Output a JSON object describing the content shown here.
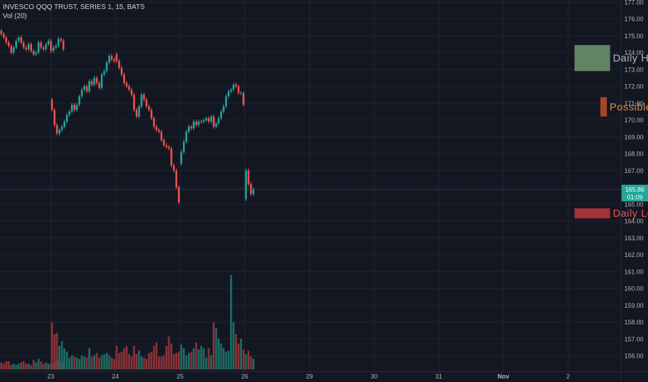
{
  "header": {
    "symbol": "INVESCO QQQ TRUST, SERIES 1, 15, BATS",
    "indicator": "Vol (20)"
  },
  "price_badge": {
    "price": "165.86",
    "countdown": "01:09"
  },
  "colors": {
    "background": "#131722",
    "grid": "#1f2431",
    "up": "#26a69a",
    "down": "#ef5350",
    "vol_up": "#1e6b63",
    "vol_down": "#8a3236",
    "axis_text": "#b2b5be",
    "price_line": "#26a69a"
  },
  "annotations": [
    {
      "label": "Daily High Range",
      "color": "#b2b5be",
      "fill": "#6b8f6b",
      "x_start": 9.1,
      "x_end": 9.65,
      "y_low": 172.9,
      "y_high": 174.45
    },
    {
      "label": "Possible Closing Range",
      "color": "#e8843a",
      "fill": "#b84a2c",
      "x_start": 9.5,
      "x_end": 9.6,
      "y_low": 170.2,
      "y_high": 171.35
    },
    {
      "label": "Daily Low Range",
      "color": "#ef5350",
      "fill": "#b5343a",
      "x_start": 9.1,
      "x_end": 9.65,
      "y_low": 164.15,
      "y_high": 164.75
    }
  ],
  "chart_data": {
    "type": "candlestick",
    "title": "INVESCO QQQ TRUST, SERIES 1, 15, BATS",
    "y_ticks": [
      "177.00",
      "176.00",
      "175.00",
      "174.00",
      "173.00",
      "172.00",
      "171.00",
      "170.00",
      "169.00",
      "168.00",
      "167.00",
      "166.00",
      "165.00",
      "164.00",
      "163.00",
      "162.00",
      "161.00",
      "160.00",
      "159.00",
      "158.00",
      "157.00",
      "156.00"
    ],
    "x_ticks": [
      "23",
      "24",
      "25",
      "26",
      "29",
      "30",
      "31",
      "Nov",
      "2"
    ],
    "ylim": [
      155.2,
      177.3
    ],
    "grid": true,
    "sessions": [
      {
        "day": "22",
        "closes": [
          175.1,
          174.9,
          174.6,
          174.4,
          174.0,
          174.3,
          174.7,
          174.9,
          174.6,
          174.3,
          174.2,
          174.5,
          174.1,
          173.9,
          174.0,
          174.6,
          174.3,
          174.2,
          174.5,
          174.7,
          174.1,
          174.3,
          174.4,
          174.8,
          174.7,
          174.2
        ]
      },
      {
        "day": "23",
        "open": 171.2,
        "closes": [
          170.6,
          169.7,
          169.2,
          169.4,
          169.6,
          169.9,
          170.3,
          170.5,
          170.9,
          170.6,
          170.9,
          171.4,
          171.8,
          172.0,
          171.7,
          172.3,
          172.1,
          172.5,
          172.2,
          171.9,
          172.7,
          172.9,
          173.4,
          173.8,
          173.6,
          173.5
        ]
      },
      {
        "day": "24",
        "open": 173.9,
        "closes": [
          173.5,
          173.1,
          172.7,
          172.2,
          172.0,
          171.8,
          171.5,
          170.6,
          170.2,
          170.8,
          171.5,
          171.2,
          170.8,
          170.6,
          170.1,
          169.6,
          169.4,
          169.3,
          168.8,
          168.5,
          168.4,
          168.3,
          167.3,
          167.0,
          166.0,
          165.1
        ]
      },
      {
        "day": "25",
        "open": 167.4,
        "closes": [
          168.1,
          168.7,
          169.3,
          169.6,
          169.5,
          169.9,
          169.7,
          169.9,
          169.9,
          170.0,
          170.1,
          169.9,
          170.2,
          169.6,
          169.8,
          170.1,
          170.5,
          170.8,
          171.4,
          171.7,
          171.8,
          172.1,
          172.0,
          171.6,
          171.6,
          170.9
        ]
      },
      {
        "day": "26",
        "open": 165.3,
        "closes": [
          167.0,
          166.2,
          165.6,
          165.86
        ]
      }
    ],
    "volume": {
      "ylim": [
        0,
        1.0
      ],
      "values": [
        0.06,
        0.05,
        0.07,
        0.07,
        0.04,
        0.05,
        0.04,
        0.05,
        0.06,
        0.07,
        0.05,
        0.05,
        0.04,
        0.08,
        0.06,
        0.09,
        0.07,
        0.05,
        0.06,
        0.05,
        0.05,
        0.05,
        0.07,
        0.09,
        0.06,
        0.07,
        0.4,
        0.3,
        0.31,
        0.2,
        0.24,
        0.18,
        0.15,
        0.1,
        0.12,
        0.11,
        0.1,
        0.09,
        0.12,
        0.11,
        0.1,
        0.18,
        0.11,
        0.12,
        0.14,
        0.1,
        0.12,
        0.13,
        0.14,
        0.12,
        0.1,
        0.09,
        0.2,
        0.14,
        0.15,
        0.18,
        0.2,
        0.13,
        0.11,
        0.2,
        0.13,
        0.16,
        0.11,
        0.1,
        0.09,
        0.14,
        0.15,
        0.2,
        0.23,
        0.11,
        0.11,
        0.12,
        0.2,
        0.28,
        0.22,
        0.13,
        0.14,
        0.15,
        0.21,
        0.18,
        0.12,
        0.14,
        0.15,
        0.18,
        0.23,
        0.17,
        0.2,
        0.18,
        0.1,
        0.18,
        0.12,
        0.4,
        0.35,
        0.26,
        0.22,
        0.18,
        0.15,
        0.16,
        0.8,
        0.4,
        0.3,
        0.22,
        0.26,
        0.17,
        0.13,
        0.16,
        0.11,
        0.09,
        0.12,
        0.1,
        0.07,
        0.08,
        0.1,
        0.1,
        0.12,
        0.08,
        0.07,
        0.08,
        0.09,
        0.1,
        0.09,
        0.1,
        0.12,
        0.08,
        0.1,
        0.14,
        0.07,
        0.08,
        0.11,
        0.12,
        0.18,
        0.37,
        0.22,
        0.17,
        0.15
      ]
    }
  }
}
